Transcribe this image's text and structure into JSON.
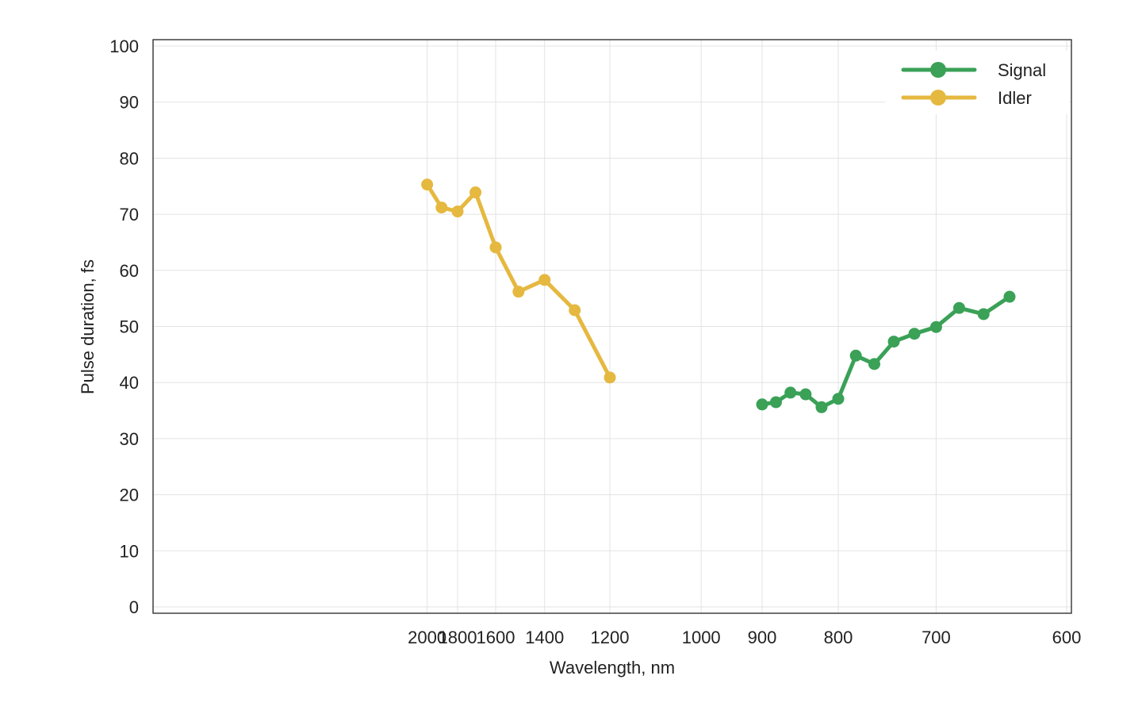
{
  "chart_data": {
    "type": "line",
    "xlabel": "Wavelength, nm",
    "ylabel": "Pulse duration, fs",
    "xscale": "reciprocal",
    "xlim": [
      600,
      2150
    ],
    "ylim": [
      0,
      100
    ],
    "x_ticks": [
      600,
      700,
      800,
      900,
      1000,
      1200,
      1400,
      1600,
      1800,
      2000
    ],
    "y_ticks": [
      0,
      10,
      20,
      30,
      40,
      50,
      60,
      70,
      80,
      90,
      100
    ],
    "grid": true,
    "legend_position": "top-right",
    "series": [
      {
        "name": "Signal",
        "color": "#3aa157",
        "x": [
          640,
          660,
          680,
          700,
          720,
          740,
          760,
          780,
          800,
          820,
          840,
          860,
          880,
          900
        ],
        "y": [
          55.3,
          52.2,
          53.3,
          49.9,
          48.7,
          47.3,
          43.3,
          44.8,
          37.1,
          35.6,
          37.9,
          38.2,
          36.5,
          36.1
        ]
      },
      {
        "name": "Idler",
        "color": "#e5b840",
        "x": [
          1200,
          1300,
          1400,
          1500,
          1600,
          1700,
          1800,
          1900,
          2000
        ],
        "y": [
          40.9,
          52.9,
          58.3,
          56.2,
          64.1,
          73.9,
          70.5,
          71.2,
          75.3
        ]
      }
    ]
  }
}
